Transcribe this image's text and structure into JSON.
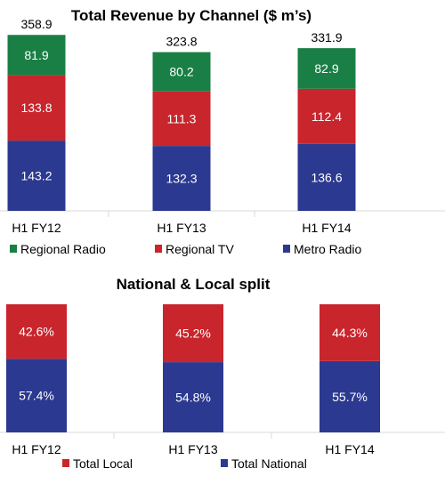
{
  "chart_data": [
    {
      "type": "bar",
      "stacked": true,
      "title": "Total Revenue by Channel ($ m’s)",
      "categories": [
        "H1 FY12",
        "H1 FY13",
        "H1 FY14"
      ],
      "totals": [
        "358.9",
        "323.8",
        "331.9"
      ],
      "series": [
        {
          "name": "Metro Radio",
          "color": "#2b3990",
          "values": [
            143.2,
            132.3,
            136.6
          ]
        },
        {
          "name": "Regional TV",
          "color": "#c9252c",
          "values": [
            133.8,
            111.3,
            112.4
          ]
        },
        {
          "name": "Regional Radio",
          "color": "#1a7f45",
          "values": [
            81.9,
            80.2,
            82.9
          ]
        }
      ],
      "legend": [
        "Regional Radio",
        "Regional TV",
        "Metro Radio"
      ],
      "legend_position": "bottom",
      "grid": false
    },
    {
      "type": "bar",
      "stacked": true,
      "percent": true,
      "title": "National & Local split",
      "categories": [
        "H1 FY12",
        "H1 FY13",
        "H1 FY14"
      ],
      "series": [
        {
          "name": "Total National",
          "color": "#2b3990",
          "values": [
            57.4,
            54.8,
            55.7
          ]
        },
        {
          "name": "Total Local",
          "color": "#c9252c",
          "values": [
            42.6,
            45.2,
            44.3
          ]
        }
      ],
      "legend": [
        "Total Local",
        "Total National"
      ],
      "legend_position": "bottom",
      "grid": false
    }
  ]
}
